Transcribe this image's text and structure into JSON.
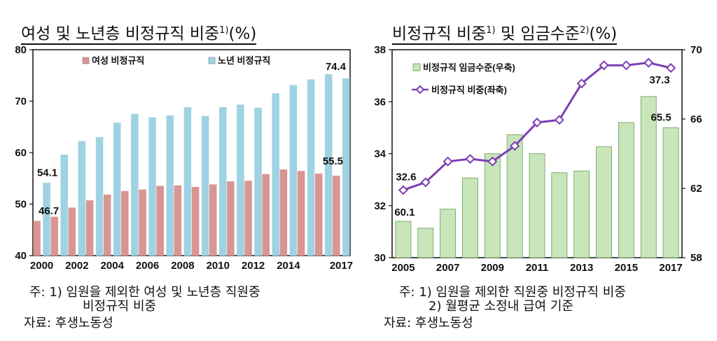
{
  "left": {
    "title_main": "여성 및 노년층 비정규직 비중",
    "title_sup": "1)",
    "title_unit": "(%)",
    "note_line1": "주: 1) 임원을 제외한 여성 및 노년층 직원중",
    "note_line2": "비정규직 비중",
    "source": "자료: 후생노동성"
  },
  "right": {
    "title_main": "비정규직 비중",
    "title_sup1": "1)",
    "title_mid": " 및 임금수준",
    "title_sup2": "2)",
    "title_unit": "(%)",
    "note_line1": "주: 1) 임원을 제외한 직원중 비정규직 비중",
    "note_line2": "2) 월평균 소정내 급여 기준",
    "source": "자료: 후생노동성"
  },
  "chart_data": [
    {
      "type": "bar",
      "categories": [
        "2000",
        "2001",
        "2002",
        "2003",
        "2004",
        "2005",
        "2006",
        "2007",
        "2008",
        "2009",
        "2010",
        "2011",
        "2012",
        "2013",
        "2014",
        "2015",
        "2016",
        "2017"
      ],
      "x_tick_labels": [
        "2000",
        "2002",
        "2004",
        "2006",
        "2008",
        "2010",
        "2012",
        "2014",
        "2017"
      ],
      "series": [
        {
          "name": "여성 비정규직",
          "color": "#d99592",
          "values": [
            46.7,
            47.5,
            49.3,
            50.7,
            51.8,
            52.5,
            52.8,
            53.5,
            53.6,
            53.3,
            53.8,
            54.4,
            54.5,
            55.8,
            56.7,
            56.4,
            55.9,
            55.5
          ]
        },
        {
          "name": "노년 비정규직",
          "color": "#9fd2e2",
          "values": [
            54.1,
            59.6,
            62.2,
            63.0,
            65.8,
            67.5,
            66.8,
            67.2,
            68.8,
            67.1,
            68.8,
            69.3,
            68.7,
            71.5,
            73.1,
            74.2,
            75.2,
            74.4
          ]
        }
      ],
      "data_labels": [
        "54.1",
        "46.7",
        "74.4",
        "55.5"
      ],
      "ylim": [
        40,
        80
      ],
      "y_ticks": [
        40,
        50,
        60,
        70,
        80
      ],
      "legend_position": "top"
    },
    {
      "type": "bar+line",
      "categories": [
        "2005",
        "2006",
        "2007",
        "2008",
        "2009",
        "2010",
        "2011",
        "2012",
        "2013",
        "2014",
        "2015",
        "2016",
        "2017"
      ],
      "x_tick_labels": [
        "2005",
        "2007",
        "2009",
        "2011",
        "2013",
        "2015",
        "2017"
      ],
      "series": [
        {
          "name": "비정규직 임금수준(우축)",
          "type": "bar",
          "axis": "right",
          "color": "#c8e6b9",
          "values": [
            60.1,
            59.7,
            60.8,
            62.6,
            64.0,
            65.1,
            64.0,
            62.9,
            63.0,
            64.4,
            65.8,
            67.3,
            65.5
          ]
        },
        {
          "name": "비정규직 비중(좌축)",
          "type": "line",
          "axis": "left",
          "color": "#7d3fb5",
          "values": [
            32.6,
            32.9,
            33.7,
            33.8,
            33.7,
            34.3,
            35.2,
            35.3,
            36.7,
            37.4,
            37.4,
            37.5,
            37.3
          ]
        }
      ],
      "data_labels": [
        "32.6",
        "60.1",
        "37.3",
        "65.5"
      ],
      "ylim_left": [
        30,
        38
      ],
      "y_ticks_left": [
        30,
        32,
        34,
        36,
        38
      ],
      "ylim_right": [
        58,
        70
      ],
      "y_ticks_right": [
        58,
        62,
        66,
        70
      ],
      "legend_position": "top-left"
    }
  ]
}
